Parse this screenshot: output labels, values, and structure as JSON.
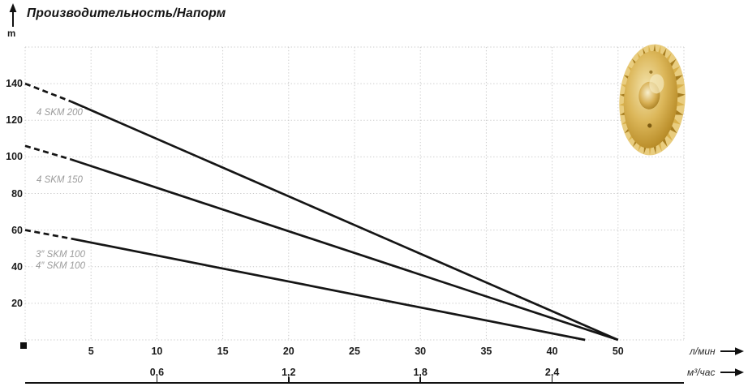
{
  "header": {
    "title": "Производительность/Напорм",
    "y_unit": "m"
  },
  "units": {
    "flow_per_min": "л/мин",
    "flow_per_hour": "м³/час"
  },
  "curve_labels": {
    "skm200": "4 SKM 200",
    "skm150": "4 SKM 150",
    "skm100_3": "3″ SKM 100",
    "skm100_4": "4″ SKM 100"
  },
  "colors": {
    "curve": "#151515",
    "grid": "#c9c9c9",
    "text": "#1b1b1b",
    "muted_label": "#9b9b9b",
    "axis_line": "#111111",
    "impeller_rim": "#e9cd7f",
    "impeller_mid": "#d9b14c",
    "impeller_dark": "#a77d1f",
    "impeller_highlight": "#f6ecc4",
    "impeller_shadow": "#7d5c12"
  },
  "chart_data": {
    "type": "line",
    "title": "Производительность/Напорм",
    "ylabel": "m",
    "xlabel_primary": "л/мин",
    "xlabel_secondary": "м³/час",
    "ylim": [
      0,
      160
    ],
    "xlim_lmin": [
      0,
      50
    ],
    "grid": "dotted",
    "y_ticks": [
      20,
      40,
      60,
      80,
      100,
      120,
      140
    ],
    "x_ticks_lmin": [
      {
        "label": "5",
        "flow": 5
      },
      {
        "label": "10",
        "flow": 10
      },
      {
        "label": "15",
        "flow": 15
      },
      {
        "label": "20",
        "flow": 20
      },
      {
        "label": "25",
        "flow": 25
      },
      {
        "label": "30",
        "flow": 30
      },
      {
        "label": "35",
        "flow": 35
      },
      {
        "label": "40",
        "flow": 40
      },
      {
        "label": "50",
        "flow": 50
      }
    ],
    "x_ticks_m3h": [
      {
        "label": "0,6",
        "flow": 10
      },
      {
        "label": "1,2",
        "flow": 20
      },
      {
        "label": "1,8",
        "flow": 30
      },
      {
        "label": "2,4",
        "flow": 40
      }
    ],
    "series": [
      {
        "name": "4 SKM 200",
        "points": [
          [
            0,
            140
          ],
          [
            50,
            0
          ]
        ],
        "dashed_until_flow": 3.5
      },
      {
        "name": "4 SKM 150",
        "points": [
          [
            0,
            106
          ],
          [
            50,
            0
          ]
        ],
        "dashed_until_flow": 3.5
      },
      {
        "name": "3″/4″ SKM 100",
        "points": [
          [
            0,
            60
          ],
          [
            45,
            0
          ]
        ],
        "dashed_until_flow": 3.5
      }
    ]
  }
}
